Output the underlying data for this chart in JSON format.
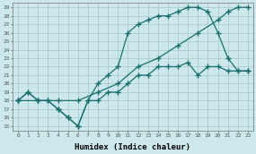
{
  "xlabel": "Humidex (Indice chaleur)",
  "bg_color": "#cce8ec",
  "grid_color": "#aacccc",
  "line_color": "#1a6e6e",
  "xlim": [
    -0.5,
    23.5
  ],
  "ylim": [
    14.5,
    29.5
  ],
  "xticks": [
    0,
    1,
    2,
    3,
    4,
    5,
    6,
    7,
    8,
    9,
    10,
    11,
    12,
    13,
    14,
    15,
    16,
    17,
    18,
    19,
    20,
    21,
    22,
    23
  ],
  "yticks": [
    15,
    16,
    17,
    18,
    19,
    20,
    21,
    22,
    23,
    24,
    25,
    26,
    27,
    28,
    29
  ],
  "line1_x": [
    0,
    1,
    2,
    3,
    4,
    5,
    6,
    7,
    8,
    9,
    10,
    11,
    12,
    13,
    14,
    15,
    16,
    17,
    18,
    19,
    20,
    21,
    22,
    23
  ],
  "line1_y": [
    18,
    19,
    18,
    18,
    17,
    16,
    15,
    18,
    18,
    19,
    19,
    20,
    21,
    21,
    22,
    22,
    22,
    22.5,
    21,
    22,
    22,
    21.5,
    21.5,
    21.5
  ],
  "line2_x": [
    0,
    1,
    2,
    3,
    4,
    5,
    6,
    7,
    8,
    9,
    10,
    11,
    12,
    13,
    14,
    15,
    16,
    17,
    18,
    19,
    20,
    21,
    22,
    23
  ],
  "line2_y": [
    18,
    19,
    18,
    18,
    17,
    16,
    15,
    18,
    20,
    21,
    22,
    26,
    27,
    27.5,
    28,
    28,
    28.5,
    29,
    29,
    28.5,
    26,
    23,
    21.5,
    21.5
  ],
  "line3_x": [
    0,
    2,
    4,
    6,
    8,
    10,
    12,
    14,
    16,
    18,
    20,
    21,
    22,
    23
  ],
  "line3_y": [
    18,
    18,
    18,
    18,
    19,
    20,
    22,
    23,
    24.5,
    26,
    27.5,
    28.5,
    29,
    29
  ]
}
